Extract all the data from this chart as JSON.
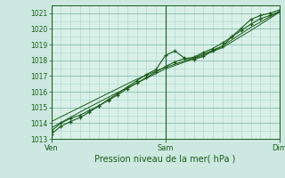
{
  "xlabel": "Pression niveau de la mer( hPa )",
  "bg_color": "#cce8e0",
  "plot_bg_color": "#d8f0e8",
  "grid_color_major": "#88bbaa",
  "grid_color_minor": "#aad4c8",
  "line_color": "#1a5c1a",
  "ylim": [
    1013,
    1021.5
  ],
  "yticks": [
    1013,
    1014,
    1015,
    1016,
    1017,
    1018,
    1019,
    1020,
    1021
  ],
  "xlim": [
    0,
    48
  ],
  "xtick_positions": [
    0,
    24,
    48
  ],
  "xtick_labels": [
    "Ven",
    "Sam",
    "Dim"
  ],
  "line1_x": [
    0,
    2,
    4,
    6,
    8,
    10,
    12,
    14,
    16,
    18,
    20,
    22,
    24,
    26,
    28,
    30,
    32,
    34,
    36,
    38,
    40,
    42,
    44,
    46,
    48
  ],
  "line1_y": [
    1013.3,
    1013.8,
    1014.1,
    1014.35,
    1014.7,
    1015.1,
    1015.5,
    1015.9,
    1016.3,
    1016.7,
    1017.1,
    1017.4,
    1018.3,
    1018.6,
    1018.15,
    1018.05,
    1018.25,
    1018.6,
    1018.9,
    1019.5,
    1020.05,
    1020.6,
    1020.85,
    1021.0,
    1021.2
  ],
  "line2_x": [
    0,
    2,
    4,
    6,
    8,
    10,
    12,
    14,
    16,
    18,
    20,
    22,
    24,
    26,
    28,
    30,
    32,
    34,
    36,
    38,
    40,
    42,
    44,
    46,
    48
  ],
  "line2_y": [
    1013.5,
    1014.0,
    1014.3,
    1014.5,
    1014.8,
    1015.1,
    1015.45,
    1015.8,
    1016.2,
    1016.55,
    1016.9,
    1017.25,
    1017.6,
    1017.9,
    1018.1,
    1018.2,
    1018.5,
    1018.75,
    1019.1,
    1019.5,
    1019.9,
    1020.3,
    1020.65,
    1020.85,
    1021.1
  ],
  "line3_x": [
    0,
    6,
    12,
    18,
    24,
    30,
    36,
    42,
    48
  ],
  "line3_y": [
    1013.7,
    1014.7,
    1015.65,
    1016.55,
    1017.45,
    1018.1,
    1018.8,
    1019.9,
    1021.05
  ],
  "line4_x": [
    0,
    6,
    12,
    18,
    24,
    30,
    36,
    42,
    48
  ],
  "line4_y": [
    1014.1,
    1015.0,
    1015.9,
    1016.8,
    1017.55,
    1018.15,
    1018.9,
    1020.1,
    1021.1
  ]
}
